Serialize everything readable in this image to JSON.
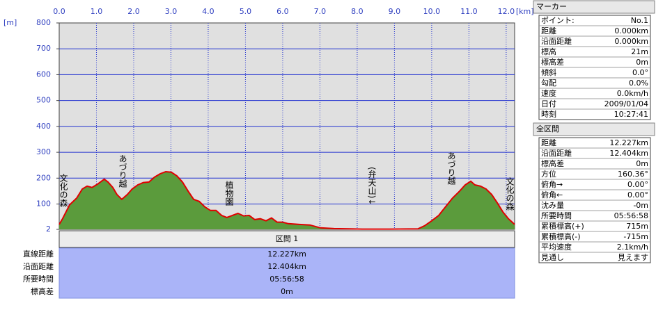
{
  "chart_data": {
    "type": "area",
    "x_unit": "[km]",
    "y_unit": "[m]",
    "xlim": [
      0,
      12.227
    ],
    "ylim": [
      2,
      800
    ],
    "xticks": [
      {
        "value": 0,
        "label": "0.0"
      },
      {
        "value": 1,
        "label": "1.0"
      },
      {
        "value": 2,
        "label": "2.0"
      },
      {
        "value": 3,
        "label": "3.0"
      },
      {
        "value": 4,
        "label": "4.0"
      },
      {
        "value": 5,
        "label": "5.0"
      },
      {
        "value": 6,
        "label": "6.0"
      },
      {
        "value": 7,
        "label": "7.0"
      },
      {
        "value": 8,
        "label": "8.0"
      },
      {
        "value": 9,
        "label": "9.0"
      },
      {
        "value": 10,
        "label": "10.0"
      },
      {
        "value": 11,
        "label": "11.0"
      },
      {
        "value": 12,
        "label": "12.0"
      }
    ],
    "yticks": [
      2,
      100,
      200,
      300,
      400,
      500,
      600,
      700,
      800
    ],
    "grid": true,
    "x": [
      0,
      0.09,
      0.28,
      0.47,
      0.62,
      0.75,
      0.88,
      1.03,
      1.21,
      1.31,
      1.44,
      1.55,
      1.68,
      1.83,
      1.96,
      2.11,
      2.26,
      2.41,
      2.56,
      2.71,
      2.86,
      3.01,
      3.16,
      3.31,
      3.46,
      3.61,
      3.76,
      3.91,
      4.06,
      4.21,
      4.36,
      4.5,
      4.65,
      4.8,
      4.95,
      5.1,
      5.25,
      5.4,
      5.55,
      5.7,
      5.85,
      6.0,
      6.15,
      6.45,
      6.73,
      7.01,
      7.38,
      8.13,
      8.88,
      9.63,
      9.81,
      10.0,
      10.19,
      10.37,
      10.56,
      10.75,
      10.9,
      11.05,
      11.16,
      11.31,
      11.46,
      11.61,
      11.76,
      11.91,
      12.06,
      12.227
    ],
    "series": [
      {
        "color": "#5b9b3c",
        "line_color": "#e00000",
        "values": [
          21,
          43,
          97,
          123,
          158,
          169,
          164,
          177,
          196,
          185,
          164,
          137,
          118,
          137,
          158,
          174,
          183,
          185,
          204,
          217,
          225,
          223,
          209,
          185,
          150,
          118,
          110,
          89,
          75,
          75,
          56,
          48,
          56,
          64,
          54,
          56,
          40,
          43,
          35,
          46,
          30,
          30,
          24,
          21,
          19,
          8,
          5,
          3,
          3,
          4,
          16,
          35,
          56,
          89,
          123,
          150,
          174,
          188,
          174,
          169,
          158,
          137,
          105,
          70,
          43,
          21
        ]
      }
    ],
    "annotations": [
      "文化の森",
      "あづり越",
      "植物園",
      "(弁天山)↓",
      "あづり越",
      "文化の森"
    ]
  },
  "section": {
    "title": "区間 1",
    "rows": [
      [
        "直線距離",
        "12.227km"
      ],
      [
        "沿面距離",
        "12.404km"
      ],
      [
        "所要時間",
        "05:56:58"
      ],
      [
        "標高差",
        "0m"
      ]
    ]
  },
  "marker": {
    "title": "マーカー",
    "rows": [
      [
        "ポイント:",
        "No.1"
      ],
      [
        "距離",
        "0.000km"
      ],
      [
        "沿面距離",
        "0.000km"
      ],
      [
        "標高",
        "21m"
      ],
      [
        "標高差",
        "0m"
      ],
      [
        "傾斜",
        "0.0°"
      ],
      [
        "勾配",
        "0.0%"
      ],
      [
        "速度",
        "0.0km/h"
      ],
      [
        "日付",
        "2009/01/04"
      ],
      [
        "時刻",
        "10:27:41"
      ]
    ]
  },
  "total": {
    "title": "全区間",
    "rows": [
      [
        "距離",
        "12.227km"
      ],
      [
        "沿面距離",
        "12.404km"
      ],
      [
        "標高差",
        "0m"
      ],
      [
        "方位",
        "160.36°"
      ],
      [
        "俯角→",
        "0.00°"
      ],
      [
        "俯角←",
        "0.00°"
      ],
      [
        "沈み量",
        "-0m"
      ],
      [
        "所要時間",
        "05:56:58"
      ],
      [
        "累積標高(+)",
        "715m"
      ],
      [
        "累積標高(-)",
        "-715m"
      ],
      [
        "平均速度",
        "2.1km/h"
      ],
      [
        "見通し",
        "見えます"
      ]
    ]
  }
}
